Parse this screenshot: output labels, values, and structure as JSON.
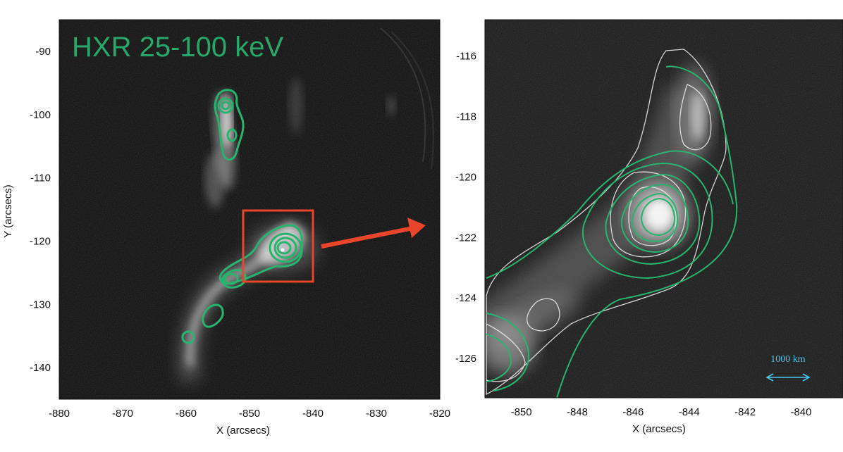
{
  "left_panel": {
    "energy_label": "HXR 25-100 keV",
    "x_axis_title": "X (arcsecs)",
    "y_axis_title": "Y (arcsecs)",
    "x_range": [
      -880,
      -820
    ],
    "y_range": [
      -145,
      -85
    ],
    "x_ticks": [
      "-880",
      "-870",
      "-860",
      "-850",
      "-840",
      "-830",
      "-820"
    ],
    "y_ticks": [
      "-90",
      "-100",
      "-110",
      "-120",
      "-130",
      "-140"
    ]
  },
  "right_panel": {
    "x_axis_title": "X (arcsecs)",
    "x_range": [
      -851.3,
      -838.5
    ],
    "y_range": [
      -127.3,
      -114.8
    ],
    "x_ticks": [
      "-850",
      "-848",
      "-846",
      "-844",
      "-842",
      "-840"
    ],
    "y_ticks": [
      "-116",
      "-118",
      "-120",
      "-122",
      "-124",
      "-126"
    ],
    "scale_bar_label": "1000 km"
  },
  "colors": {
    "hxr_contour": "#27b46e",
    "inset_box": "#e8452b",
    "arrow": "#e8452b",
    "scale_bar": "#4cc6ea",
    "background": "#0b0b0b"
  }
}
